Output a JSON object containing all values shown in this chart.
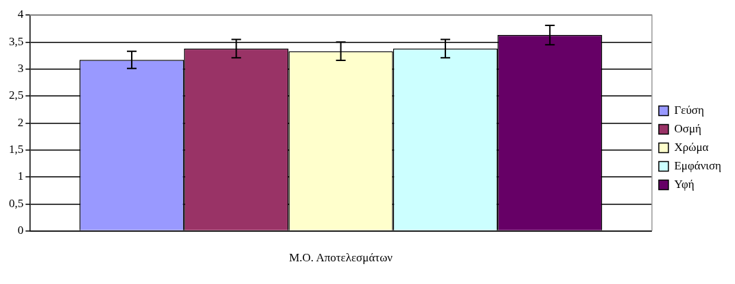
{
  "chart_data": {
    "type": "bar",
    "categories": [
      "Μ.Ο. Αποτελεσμάτων"
    ],
    "series": [
      {
        "name": "Γεύση",
        "color": "#9999ff",
        "values": [
          3.17
        ],
        "errors": [
          0.16
        ]
      },
      {
        "name": "Οσμή",
        "color": "#993366",
        "values": [
          3.38
        ],
        "errors": [
          0.17
        ]
      },
      {
        "name": "Χρώμα",
        "color": "#ffffcc",
        "values": [
          3.33
        ],
        "errors": [
          0.17
        ]
      },
      {
        "name": "Εμφάνιση",
        "color": "#ccffff",
        "values": [
          3.38
        ],
        "errors": [
          0.17
        ]
      },
      {
        "name": "Υφή",
        "color": "#660066",
        "values": [
          3.63
        ],
        "errors": [
          0.18
        ]
      }
    ],
    "ylim": [
      0,
      4
    ],
    "yticks": [
      0,
      {
        "value": 0.5,
        "label": "0,5"
      },
      1,
      {
        "value": 1.5,
        "label": "1,5"
      },
      2,
      {
        "value": 2.5,
        "label": "2,5"
      },
      3,
      {
        "value": 3.5,
        "label": "3,5"
      },
      4
    ],
    "grid": "y",
    "legend": "right"
  }
}
